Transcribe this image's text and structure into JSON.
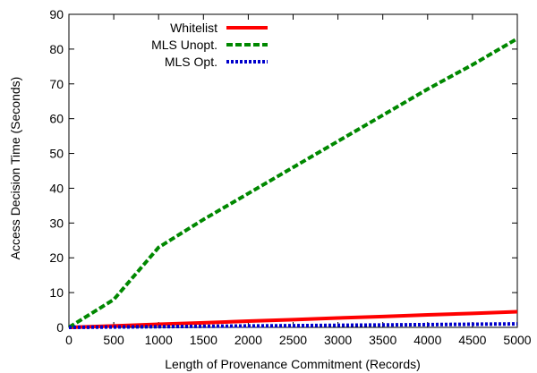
{
  "chart_data": {
    "type": "line",
    "xlabel": "Length of Provenance Commitment (Records)",
    "ylabel": "Access Decision Time (Seconds)",
    "xlim": [
      0,
      5000
    ],
    "ylim": [
      0,
      90
    ],
    "xticks": [
      0,
      500,
      1000,
      1500,
      2000,
      2500,
      3000,
      3500,
      4000,
      4500,
      5000
    ],
    "yticks": [
      0,
      10,
      20,
      30,
      40,
      50,
      60,
      70,
      80,
      90
    ],
    "grid": false,
    "legend_position": "top-left",
    "series": [
      {
        "name": "Whitelist",
        "color": "#ff0000",
        "dash": "solid",
        "x": [
          0,
          500,
          1000,
          1500,
          2000,
          2500,
          3000,
          3500,
          4000,
          4500,
          5000
        ],
        "y": [
          0,
          0.4,
          0.9,
          1.3,
          1.8,
          2.2,
          2.7,
          3.1,
          3.6,
          4.0,
          4.5
        ]
      },
      {
        "name": "MLS Unopt.",
        "color": "#008800",
        "dash": "dashed",
        "x": [
          0,
          500,
          1000,
          1500,
          2000,
          2500,
          3000,
          3500,
          4000,
          4500,
          5000
        ],
        "y": [
          0,
          8,
          23,
          31,
          38.5,
          46,
          53.5,
          61,
          68.5,
          75.5,
          83
        ]
      },
      {
        "name": "MLS Opt.",
        "color": "#0000cc",
        "dash": "dotted",
        "x": [
          0,
          500,
          1000,
          1500,
          2000,
          2500,
          3000,
          3500,
          4000,
          4500,
          5000
        ],
        "y": [
          0,
          0.1,
          0.2,
          0.3,
          0.4,
          0.5,
          0.6,
          0.7,
          0.8,
          0.9,
          1.0
        ]
      }
    ]
  }
}
